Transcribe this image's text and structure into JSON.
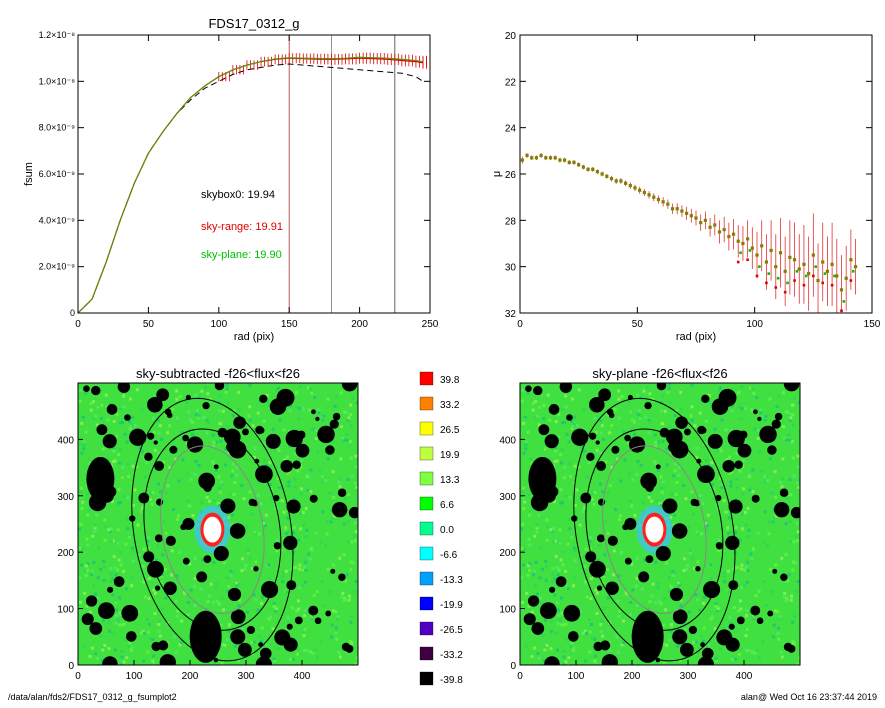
{
  "footer": {
    "left": "/data/alan/fds2/FDS17_0312_g_fsumplot2",
    "right": "alan@  Wed Oct 16 23:37:44 2019"
  },
  "colors": {
    "raw": "#000000",
    "sky_range": "#e00000",
    "sky_plane": "#00c000",
    "overlay": "#808000",
    "annulus_black": "#000000",
    "annulus_grey": "#888888"
  },
  "chart_data": [
    {
      "type": "line",
      "title": "FDS17_0312_g",
      "xlabel": "rad (pix)",
      "ylabel": "fsum",
      "xlim": [
        0,
        250
      ],
      "ylim": [
        0,
        1.2e-08
      ],
      "x_ticks": [
        "0",
        "50",
        "100",
        "150",
        "200",
        "250"
      ],
      "y_ticks": [
        "0",
        "2.0×10⁻⁹",
        "4.0×10⁻⁹",
        "6.0×10⁻⁹",
        "8.0×10⁻⁹",
        "1.0×10⁻⁸",
        "1.2×10⁻⁸"
      ],
      "vertical_lines": [
        {
          "x": 150,
          "color": "#c04040"
        },
        {
          "x": 180,
          "color": "#888888"
        },
        {
          "x": 225,
          "color": "#555555"
        }
      ],
      "annotations": [
        {
          "text": "skybox0: 19.94",
          "color": "#000000"
        },
        {
          "text": "sky-range: 19.91",
          "color": "#e00000"
        },
        {
          "text": "sky-plane: 19.90",
          "color": "#00c000"
        }
      ],
      "series": [
        {
          "style": "dashed",
          "color": "#000000",
          "x": [
            0,
            10,
            20,
            30,
            40,
            50,
            60,
            70,
            80,
            90,
            100,
            110,
            120,
            130,
            140,
            150,
            160,
            170,
            180,
            190,
            200,
            210,
            220,
            230,
            240,
            245
          ],
          "y": [
            0,
            6e-10,
            2.2e-09,
            4e-09,
            5.6e-09,
            6.9e-09,
            7.8e-09,
            8.6e-09,
            9.2e-09,
            9.7e-09,
            1e-08,
            1.03e-08,
            1.05e-08,
            1.06e-08,
            1.07e-08,
            1.075e-08,
            1.07e-08,
            1.065e-08,
            1.06e-08,
            1.055e-08,
            1.05e-08,
            1.045e-08,
            1.04e-08,
            1.035e-08,
            1.02e-08,
            1e-08
          ]
        },
        {
          "style": "errorbars",
          "color": "#e00000",
          "x": [
            0,
            10,
            20,
            30,
            40,
            50,
            60,
            70,
            80,
            90,
            100,
            110,
            120,
            130,
            140,
            150,
            160,
            170,
            180,
            190,
            200,
            210,
            220,
            230,
            240,
            245
          ],
          "y": [
            0,
            6e-10,
            2.2e-09,
            4e-09,
            5.6e-09,
            6.9e-09,
            7.8e-09,
            8.6e-09,
            9.3e-09,
            9.8e-09,
            1.02e-08,
            1.05e-08,
            1.07e-08,
            1.085e-08,
            1.095e-08,
            1.1e-08,
            1.098e-08,
            1.096e-08,
            1.095e-08,
            1.097e-08,
            1.1e-08,
            1.098e-08,
            1.095e-08,
            1.09e-08,
            1.085e-08,
            1.08e-08
          ]
        },
        {
          "style": "line",
          "color": "#00c000",
          "x": [
            0,
            10,
            20,
            30,
            40,
            50,
            60,
            70,
            80,
            90,
            100,
            110,
            120,
            130,
            140,
            150,
            160,
            170,
            180,
            190,
            200,
            210,
            220,
            230,
            240,
            245
          ],
          "y": [
            0,
            6e-10,
            2.2e-09,
            4e-09,
            5.6e-09,
            6.9e-09,
            7.8e-09,
            8.6e-09,
            9.3e-09,
            9.8e-09,
            1.02e-08,
            1.05e-08,
            1.07e-08,
            1.085e-08,
            1.097e-08,
            1.102e-08,
            1.1e-08,
            1.099e-08,
            1.098e-08,
            1.1e-08,
            1.104e-08,
            1.102e-08,
            1.1e-08,
            1.095e-08,
            1.09e-08,
            1.085e-08
          ]
        }
      ]
    },
    {
      "type": "scatter",
      "xlabel": "rad (pix)",
      "ylabel": "μ",
      "xlim": [
        0,
        150
      ],
      "ylim": [
        32,
        20
      ],
      "x_ticks": [
        "0",
        "50",
        "100",
        "150"
      ],
      "y_ticks": [
        "20",
        "22",
        "24",
        "26",
        "28",
        "30",
        "32"
      ],
      "series": [
        {
          "style": "points-errorbars",
          "color": "#808000",
          "x": [
            1,
            3,
            5,
            7,
            9,
            11,
            13,
            15,
            17,
            19,
            21,
            23,
            25,
            27,
            29,
            31,
            33,
            35,
            37,
            39,
            41,
            43,
            45,
            47,
            49,
            51,
            53,
            55,
            57,
            59,
            61,
            63,
            65,
            67,
            69,
            71,
            73,
            75,
            77,
            79,
            81,
            83,
            85,
            87,
            89,
            91,
            93,
            95,
            97,
            99,
            101,
            103,
            105,
            107,
            109,
            111,
            113,
            115,
            117,
            119,
            121,
            123,
            125,
            127,
            129,
            131,
            133,
            135,
            137,
            139,
            141,
            143
          ],
          "y": [
            25.4,
            25.2,
            25.3,
            25.3,
            25.2,
            25.3,
            25.3,
            25.3,
            25.4,
            25.4,
            25.5,
            25.5,
            25.6,
            25.7,
            25.8,
            25.8,
            25.9,
            26.0,
            26.1,
            26.2,
            26.3,
            26.3,
            26.4,
            26.5,
            26.6,
            26.7,
            26.8,
            26.9,
            27.0,
            27.1,
            27.2,
            27.3,
            27.5,
            27.5,
            27.6,
            27.7,
            27.8,
            27.9,
            28.1,
            28.0,
            28.3,
            28.2,
            28.5,
            28.4,
            28.7,
            28.6,
            28.9,
            29.0,
            28.8,
            29.2,
            29.5,
            29.1,
            29.8,
            29.3,
            30.0,
            29.4,
            30.2,
            29.6,
            29.7,
            30.1,
            29.9,
            30.3,
            29.5,
            30.6,
            29.8,
            30.2,
            29.9,
            30.4,
            31.0,
            30.5,
            29.7,
            30.0
          ],
          "err": [
            0.15,
            0.1,
            0.1,
            0.1,
            0.1,
            0.1,
            0.1,
            0.1,
            0.1,
            0.1,
            0.1,
            0.1,
            0.1,
            0.1,
            0.1,
            0.1,
            0.1,
            0.1,
            0.1,
            0.12,
            0.12,
            0.12,
            0.12,
            0.14,
            0.14,
            0.15,
            0.15,
            0.16,
            0.17,
            0.18,
            0.2,
            0.2,
            0.22,
            0.24,
            0.25,
            0.28,
            0.3,
            0.32,
            0.35,
            0.38,
            0.4,
            0.45,
            0.5,
            0.55,
            0.6,
            0.65,
            0.7,
            0.75,
            0.8,
            0.9,
            1.0,
            1.1,
            1.2,
            1.3,
            1.4,
            1.5,
            1.5,
            1.6,
            1.6,
            1.5,
            1.7,
            1.6,
            1.8,
            1.6,
            1.7,
            1.5,
            1.8,
            1.6,
            1.5,
            1.4,
            1.3,
            1.2
          ]
        }
      ]
    },
    {
      "type": "heatmap",
      "title": "sky-subtracted -f26<flux<f26",
      "xlim": [
        0,
        500
      ],
      "ylim": [
        0,
        500
      ],
      "x_ticks": [
        "0",
        "100",
        "200",
        "300",
        "400"
      ],
      "y_ticks": [
        "0",
        "100",
        "200",
        "300",
        "400"
      ],
      "galaxy_center": [
        240,
        240
      ],
      "ellipses": [
        {
          "a": 150,
          "b": 90,
          "angle_deg": 80,
          "color": "#000000"
        },
        {
          "a": 180,
          "b": 120,
          "angle_deg": 80,
          "color": "#000000"
        },
        {
          "a": 235,
          "b": 140,
          "angle_deg": 80,
          "color": "#000000"
        }
      ]
    },
    {
      "type": "heatmap",
      "title": "sky-plane -f26<flux<f26",
      "xlim": [
        0,
        500
      ],
      "ylim": [
        0,
        500
      ],
      "x_ticks": [
        "0",
        "100",
        "200",
        "300",
        "400"
      ],
      "y_ticks": [
        "0",
        "100",
        "200",
        "300",
        "400"
      ],
      "galaxy_center": [
        240,
        240
      ],
      "ellipses": [
        {
          "a": 150,
          "b": 90,
          "angle_deg": 80,
          "color": "#000000"
        },
        {
          "a": 180,
          "b": 120,
          "angle_deg": 80,
          "color": "#000000"
        },
        {
          "a": 235,
          "b": 140,
          "angle_deg": 80,
          "color": "#000000"
        }
      ]
    }
  ],
  "colorbar": {
    "labels": [
      "39.8",
      "33.2",
      "26.5",
      "19.9",
      "13.3",
      "6.6",
      "0.0",
      "-6.6",
      "-13.3",
      "-19.9",
      "-26.5",
      "-33.2",
      "-39.8"
    ],
    "colors": [
      "#ff0000",
      "#ff8000",
      "#ffff00",
      "#c0ff40",
      "#80ff40",
      "#00ff00",
      "#00ff90",
      "#00ffff",
      "#00a0ff",
      "#0000ff",
      "#5000c0",
      "#400040",
      "#000000"
    ]
  }
}
